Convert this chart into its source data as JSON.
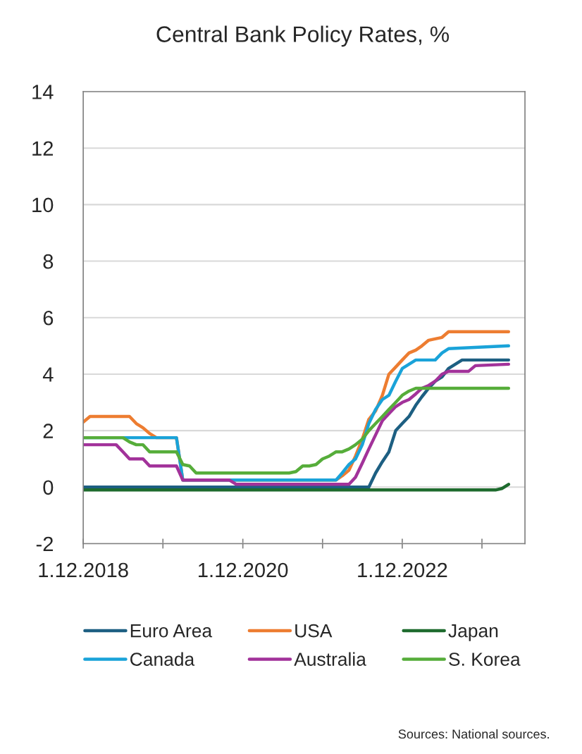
{
  "chart_data": {
    "type": "line",
    "title": "Central Bank Policy Rates, %",
    "annotations": [
      "Sources: National sources."
    ],
    "xlim": [
      "2018-12-01",
      "2024-06-15"
    ],
    "xticks": [
      {
        "value": "2018-12-01",
        "label": "1.12.2018"
      },
      {
        "value": "2019-12-01",
        "label": null
      },
      {
        "value": "2020-12-01",
        "label": "1.12.2020"
      },
      {
        "value": "2021-12-01",
        "label": null
      },
      {
        "value": "2022-12-01",
        "label": "1.12.2022"
      },
      {
        "value": "2023-12-01",
        "label": null
      }
    ],
    "ylim": [
      -2,
      14
    ],
    "yticks": [
      -2,
      0,
      2,
      4,
      6,
      8,
      10,
      12,
      14
    ],
    "grid": "y",
    "legend": "bottom",
    "marker": "none",
    "line_style": "solid",
    "series": [
      {
        "name": "Euro Area",
        "color": "#1d5f82",
        "x": [
          "2018-12",
          "2022-07",
          "2022-08",
          "2022-09",
          "2022-10",
          "2022-11",
          "2022-12",
          "2023-01",
          "2023-02",
          "2023-03",
          "2023-04",
          "2023-05",
          "2023-06",
          "2023-07",
          "2023-08",
          "2023-09",
          "2024-04"
        ],
        "values": [
          0,
          0,
          0.5,
          0.9,
          1.25,
          2.0,
          2.25,
          2.5,
          2.9,
          3.2,
          3.5,
          3.75,
          3.9,
          4.2,
          4.35,
          4.5,
          4.5
        ]
      },
      {
        "name": "USA",
        "color": "#ed7d31",
        "x": [
          "2018-12",
          "2019-01",
          "2019-07",
          "2019-08",
          "2019-09",
          "2019-10",
          "2019-11",
          "2020-02",
          "2020-03",
          "2022-02",
          "2022-03",
          "2022-04",
          "2022-05",
          "2022-06",
          "2022-07",
          "2022-08",
          "2022-09",
          "2022-10",
          "2022-11",
          "2022-12",
          "2023-01",
          "2023-02",
          "2023-03",
          "2023-04",
          "2023-05",
          "2023-06",
          "2023-07",
          "2024-04"
        ],
        "values": [
          2.3,
          2.5,
          2.5,
          2.25,
          2.1,
          1.9,
          1.75,
          1.75,
          0.25,
          0.25,
          0.4,
          0.6,
          1.1,
          1.7,
          2.4,
          2.7,
          3.25,
          4.0,
          4.25,
          4.5,
          4.75,
          4.85,
          5.0,
          5.2,
          5.25,
          5.3,
          5.5,
          5.5
        ]
      },
      {
        "name": "Japan",
        "color": "#1e6b2e",
        "x": [
          "2018-12",
          "2024-02",
          "2024-03",
          "2024-04"
        ],
        "values": [
          -0.1,
          -0.1,
          -0.05,
          0.1
        ]
      },
      {
        "name": "Canada",
        "color": "#1aa3d9",
        "x": [
          "2018-12",
          "2020-02",
          "2020-03",
          "2022-02",
          "2022-03",
          "2022-04",
          "2022-05",
          "2022-06",
          "2022-07",
          "2022-08",
          "2022-09",
          "2022-10",
          "2022-11",
          "2022-12",
          "2023-01",
          "2023-02",
          "2023-03",
          "2023-04",
          "2023-05",
          "2023-06",
          "2023-07",
          "2024-04"
        ],
        "values": [
          1.75,
          1.75,
          0.25,
          0.25,
          0.5,
          0.8,
          1.0,
          1.5,
          2.25,
          2.75,
          3.1,
          3.25,
          3.75,
          4.2,
          4.35,
          4.5,
          4.5,
          4.5,
          4.5,
          4.75,
          4.9,
          5.0
        ]
      },
      {
        "name": "Australia",
        "color": "#a2329a",
        "x": [
          "2018-12",
          "2019-05",
          "2019-06",
          "2019-07",
          "2019-09",
          "2019-10",
          "2020-02",
          "2020-03",
          "2020-10",
          "2020-11",
          "2022-04",
          "2022-05",
          "2022-06",
          "2022-07",
          "2022-08",
          "2022-09",
          "2022-10",
          "2022-11",
          "2022-12",
          "2023-01",
          "2023-02",
          "2023-03",
          "2023-04",
          "2023-05",
          "2023-06",
          "2023-07",
          "2023-09",
          "2023-10",
          "2023-11",
          "2024-04"
        ],
        "values": [
          1.5,
          1.5,
          1.25,
          1.0,
          1.0,
          0.75,
          0.75,
          0.25,
          0.25,
          0.1,
          0.1,
          0.35,
          0.85,
          1.35,
          1.85,
          2.35,
          2.6,
          2.85,
          3.0,
          3.1,
          3.3,
          3.5,
          3.6,
          3.75,
          4.0,
          4.1,
          4.1,
          4.1,
          4.3,
          4.35
        ]
      },
      {
        "name": "S. Korea",
        "color": "#56ad3a",
        "x": [
          "2018-12",
          "2019-06",
          "2019-07",
          "2019-08",
          "2019-09",
          "2019-10",
          "2020-02",
          "2020-03",
          "2020-04",
          "2020-05",
          "2021-07",
          "2021-08",
          "2021-09",
          "2021-10",
          "2021-11",
          "2021-12",
          "2022-01",
          "2022-02",
          "2022-03",
          "2022-04",
          "2022-05",
          "2022-06",
          "2022-07",
          "2022-08",
          "2022-09",
          "2022-10",
          "2022-11",
          "2022-12",
          "2023-01",
          "2023-02",
          "2024-04"
        ],
        "values": [
          1.75,
          1.75,
          1.6,
          1.5,
          1.5,
          1.25,
          1.25,
          0.8,
          0.75,
          0.5,
          0.5,
          0.55,
          0.75,
          0.75,
          0.8,
          1.0,
          1.1,
          1.25,
          1.25,
          1.35,
          1.5,
          1.7,
          2.0,
          2.25,
          2.5,
          2.75,
          3.0,
          3.25,
          3.4,
          3.5,
          3.5
        ]
      }
    ]
  }
}
